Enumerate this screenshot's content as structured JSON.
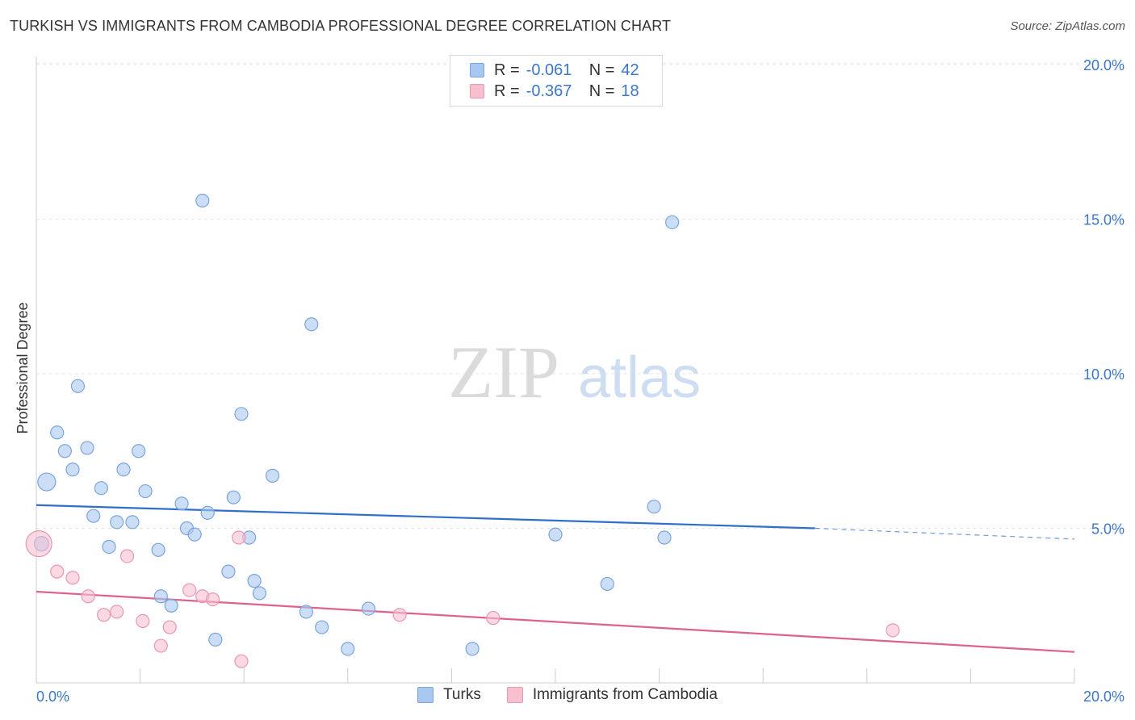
{
  "title": "TURKISH VS IMMIGRANTS FROM CAMBODIA PROFESSIONAL DEGREE CORRELATION CHART",
  "source": "Source: ZipAtlas.com",
  "watermark": {
    "zip": "ZIP",
    "atlas": "atlas"
  },
  "stats": [
    {
      "r_label": "R =",
      "r_value": "-0.061",
      "n_label": "N =",
      "n_value": "42"
    },
    {
      "r_label": "R =",
      "r_value": "-0.367",
      "n_label": "N =",
      "n_value": "18"
    }
  ],
  "legend": [
    "Turks",
    "Immigrants from Cambodia"
  ],
  "colors": {
    "turks_fill": "#a9c8f0",
    "turks_stroke": "#7aa5dc",
    "turks_line": "#2f6fcb",
    "cambodia_fill": "#f7c0cf",
    "cambodia_stroke": "#e898b0",
    "cambodia_line": "#e0628a",
    "axis_text": "#3a76c9",
    "grid": "#e6e6e6"
  },
  "chart_data": {
    "type": "scatter",
    "title": "TURKISH VS IMMIGRANTS FROM CAMBODIA PROFESSIONAL DEGREE CORRELATION CHART",
    "xlabel": "",
    "ylabel": "Professional Degree",
    "xlim": [
      0,
      20
    ],
    "ylim": [
      0,
      20.5
    ],
    "x_tick_labels": [
      "0.0%",
      "20.0%"
    ],
    "y_ticks": [
      5,
      10,
      15,
      20
    ],
    "y_tick_labels": [
      "5.0%",
      "10.0%",
      "15.0%",
      "20.0%"
    ],
    "grid": true,
    "legend_position": "bottom-center",
    "series": [
      {
        "name": "Turks",
        "points": [
          {
            "x": 0.2,
            "y": 6.5
          },
          {
            "x": 0.4,
            "y": 8.1
          },
          {
            "x": 0.55,
            "y": 7.5
          },
          {
            "x": 0.7,
            "y": 6.9
          },
          {
            "x": 0.8,
            "y": 9.6
          },
          {
            "x": 0.98,
            "y": 7.6
          },
          {
            "x": 1.1,
            "y": 5.4
          },
          {
            "x": 1.25,
            "y": 6.3
          },
          {
            "x": 1.4,
            "y": 4.4
          },
          {
            "x": 1.55,
            "y": 5.2
          },
          {
            "x": 1.68,
            "y": 6.9
          },
          {
            "x": 1.85,
            "y": 5.2
          },
          {
            "x": 1.97,
            "y": 7.5
          },
          {
            "x": 2.1,
            "y": 6.2
          },
          {
            "x": 2.35,
            "y": 4.3
          },
          {
            "x": 2.4,
            "y": 2.8
          },
          {
            "x": 2.6,
            "y": 2.5
          },
          {
            "x": 2.8,
            "y": 5.8
          },
          {
            "x": 2.9,
            "y": 5.0
          },
          {
            "x": 3.05,
            "y": 4.8
          },
          {
            "x": 3.2,
            "y": 15.6
          },
          {
            "x": 3.3,
            "y": 5.5
          },
          {
            "x": 3.45,
            "y": 1.4
          },
          {
            "x": 3.7,
            "y": 3.6
          },
          {
            "x": 3.8,
            "y": 6.0
          },
          {
            "x": 3.95,
            "y": 8.7
          },
          {
            "x": 4.1,
            "y": 4.7
          },
          {
            "x": 4.2,
            "y": 3.3
          },
          {
            "x": 4.3,
            "y": 2.9
          },
          {
            "x": 4.55,
            "y": 6.7
          },
          {
            "x": 5.2,
            "y": 2.3
          },
          {
            "x": 5.3,
            "y": 11.6
          },
          {
            "x": 5.5,
            "y": 1.8
          },
          {
            "x": 6.0,
            "y": 1.1
          },
          {
            "x": 6.4,
            "y": 2.4
          },
          {
            "x": 8.4,
            "y": 1.1
          },
          {
            "x": 10.0,
            "y": 4.8
          },
          {
            "x": 11.0,
            "y": 3.2
          },
          {
            "x": 11.9,
            "y": 5.7
          },
          {
            "x": 12.1,
            "y": 4.7
          },
          {
            "x": 12.25,
            "y": 14.9
          },
          {
            "x": 0.1,
            "y": 4.5
          }
        ],
        "trend": {
          "x": [
            0,
            15
          ],
          "y": [
            5.75,
            5.0
          ],
          "dashed_to": [
            20,
            4.65
          ]
        }
      },
      {
        "name": "Immigrants from Cambodia",
        "points": [
          {
            "x": 0.05,
            "y": 4.5
          },
          {
            "x": 0.4,
            "y": 3.6
          },
          {
            "x": 0.7,
            "y": 3.4
          },
          {
            "x": 1.0,
            "y": 2.8
          },
          {
            "x": 1.3,
            "y": 2.2
          },
          {
            "x": 1.55,
            "y": 2.3
          },
          {
            "x": 1.75,
            "y": 4.1
          },
          {
            "x": 2.05,
            "y": 2.0
          },
          {
            "x": 2.4,
            "y": 1.2
          },
          {
            "x": 2.57,
            "y": 1.8
          },
          {
            "x": 2.95,
            "y": 3.0
          },
          {
            "x": 3.2,
            "y": 2.8
          },
          {
            "x": 3.4,
            "y": 2.7
          },
          {
            "x": 3.9,
            "y": 4.7
          },
          {
            "x": 3.95,
            "y": 0.7
          },
          {
            "x": 7.0,
            "y": 2.2
          },
          {
            "x": 8.8,
            "y": 2.1
          },
          {
            "x": 16.5,
            "y": 1.7
          }
        ],
        "trend": {
          "x": [
            0,
            20
          ],
          "y": [
            2.95,
            1.0
          ]
        }
      }
    ]
  }
}
